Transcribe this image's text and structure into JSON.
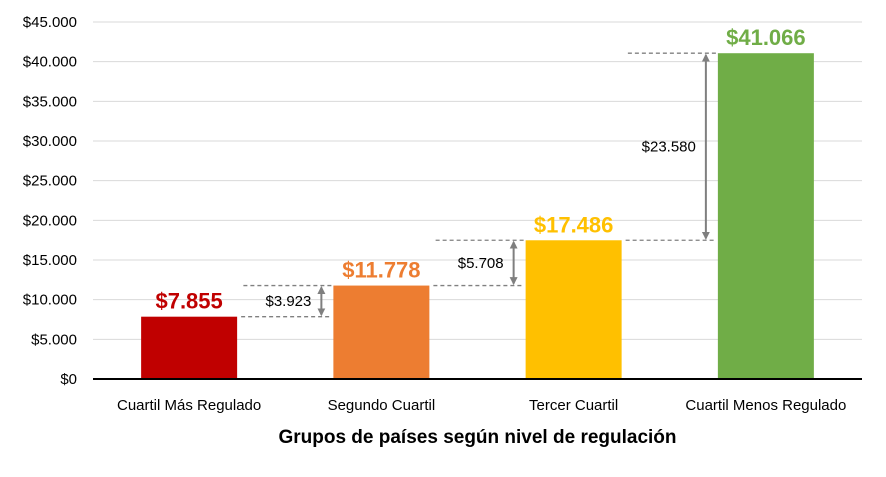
{
  "chart_data": {
    "type": "bar",
    "title": "",
    "xlabel": "Grupos de países según nivel de regulación",
    "ylabel": "",
    "ylim": [
      0,
      45000
    ],
    "ytick_step": 5000,
    "ytick_labels": [
      "$0",
      "$5.000",
      "$10.000",
      "$15.000",
      "$20.000",
      "$25.000",
      "$30.000",
      "$35.000",
      "$40.000",
      "$45.000"
    ],
    "grid": true,
    "categories": [
      "Cuartil Más Regulado",
      "Segundo Cuartil",
      "Tercer Cuartil",
      "Cuartil Menos Regulado"
    ],
    "values": [
      7855,
      11778,
      17486,
      41066
    ],
    "value_labels": [
      "$7.855",
      "$11.778",
      "$17.486",
      "$41.066"
    ],
    "colors": [
      "#c00000",
      "#ed7d31",
      "#ffc000",
      "#70ad47"
    ],
    "label_colors": [
      "#c00000",
      "#ed7d31",
      "#ffc000",
      "#70ad47"
    ],
    "differences": [
      {
        "from": 0,
        "to": 1,
        "label": "$3.923"
      },
      {
        "from": 1,
        "to": 2,
        "label": "$5.708"
      },
      {
        "from": 2,
        "to": 3,
        "label": "$23.580"
      }
    ]
  }
}
